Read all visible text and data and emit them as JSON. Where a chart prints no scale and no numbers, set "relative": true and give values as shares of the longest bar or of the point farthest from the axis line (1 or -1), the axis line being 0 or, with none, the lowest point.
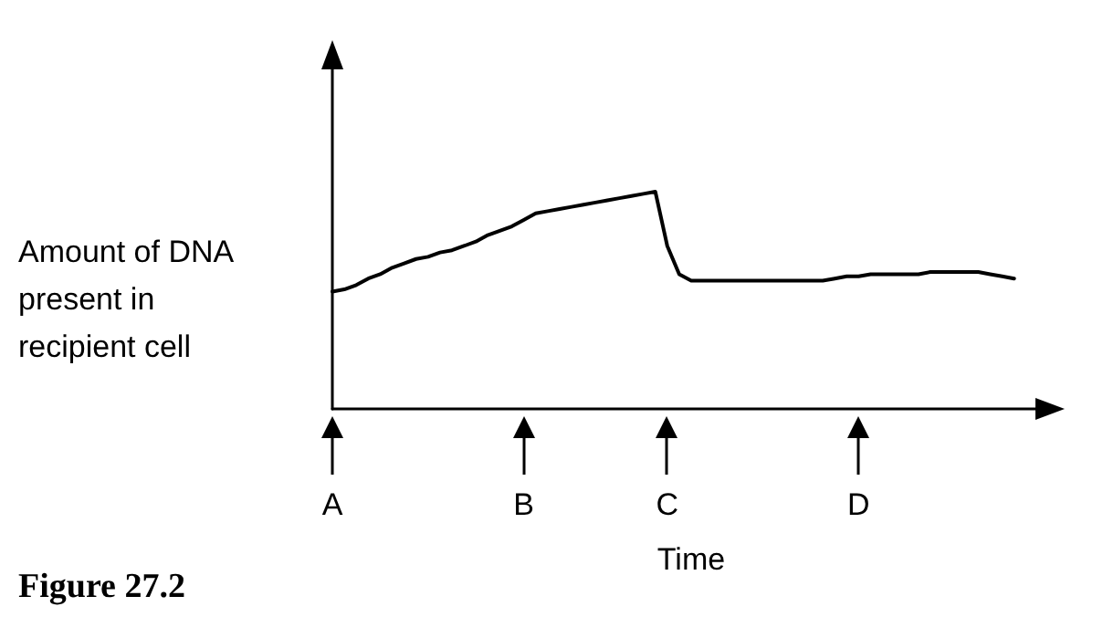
{
  "chart_data": {
    "type": "line",
    "relative": true,
    "xlabel": "Time",
    "ylabel": "Amount of DNA present in recipient cell",
    "annotations": [
      "Figure 27.2"
    ],
    "color": "#000000",
    "marker": "none",
    "grid": false,
    "categories": [
      "A",
      null,
      null,
      null,
      null,
      null,
      null,
      null,
      null,
      null,
      null,
      null,
      null,
      null,
      null,
      null,
      "B",
      null,
      null,
      null,
      null,
      null,
      null,
      null,
      null,
      null,
      null,
      null,
      "C",
      null,
      null,
      null,
      null,
      null,
      null,
      null,
      null,
      null,
      null,
      null,
      null,
      null,
      null,
      null,
      "D",
      null,
      null,
      null,
      null,
      null,
      null,
      null,
      null,
      null,
      null,
      null,
      null,
      null,
      null,
      null,
      null
    ],
    "values": [
      0.54,
      0.55,
      0.57,
      0.6,
      0.62,
      0.65,
      0.67,
      0.69,
      0.7,
      0.72,
      0.73,
      0.75,
      0.77,
      0.8,
      0.82,
      0.84,
      0.87,
      0.9,
      0.91,
      0.92,
      0.93,
      0.94,
      0.95,
      0.96,
      0.97,
      0.98,
      0.99,
      1,
      0.75,
      0.62,
      0.59,
      0.59,
      0.59,
      0.59,
      0.59,
      0.59,
      0.59,
      0.59,
      0.59,
      0.59,
      0.59,
      0.59,
      0.6,
      0.61,
      0.61,
      0.62,
      0.62,
      0.62,
      0.62,
      0.62,
      0.63,
      0.63,
      0.63,
      0.63,
      0.63,
      0.62,
      0.61,
      0.6,
      null,
      null,
      null
    ]
  }
}
